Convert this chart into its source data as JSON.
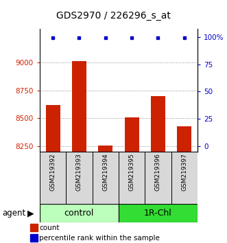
{
  "title": "GDS2970 / 226296_s_at",
  "samples": [
    "GSM219392",
    "GSM219393",
    "GSM219394",
    "GSM219395",
    "GSM219396",
    "GSM219397"
  ],
  "counts": [
    8620,
    9015,
    8258,
    8510,
    8700,
    8430
  ],
  "percentile_ranks": [
    99,
    99,
    99,
    99,
    99,
    99
  ],
  "groups": [
    {
      "label": "control",
      "n": 3,
      "color": "#bbffbb"
    },
    {
      "label": "1R-Chl",
      "n": 3,
      "color": "#33dd33"
    }
  ],
  "ylim_left": [
    8200,
    9300
  ],
  "ylim_right": [
    -5,
    107
  ],
  "yticks_left": [
    8250,
    8500,
    8750,
    9000
  ],
  "yticks_right": [
    0,
    25,
    50,
    75,
    100
  ],
  "yright_labels": [
    "0",
    "25",
    "50",
    "75",
    "100%"
  ],
  "bar_color": "#cc2200",
  "dot_color": "#0000cc",
  "bar_width": 0.55,
  "left_tick_color": "#cc2200",
  "right_tick_color": "#0000cc",
  "title_fontsize": 10,
  "tick_fontsize": 7.5,
  "sample_fontsize": 6.5,
  "group_fontsize": 9,
  "agent_fontsize": 8.5,
  "legend_fontsize": 7.5,
  "agent_label": "agent",
  "legend_count_label": "count",
  "legend_pct_label": "percentile rank within the sample",
  "grid_color": "#888888",
  "plot_bg": "#ffffff"
}
